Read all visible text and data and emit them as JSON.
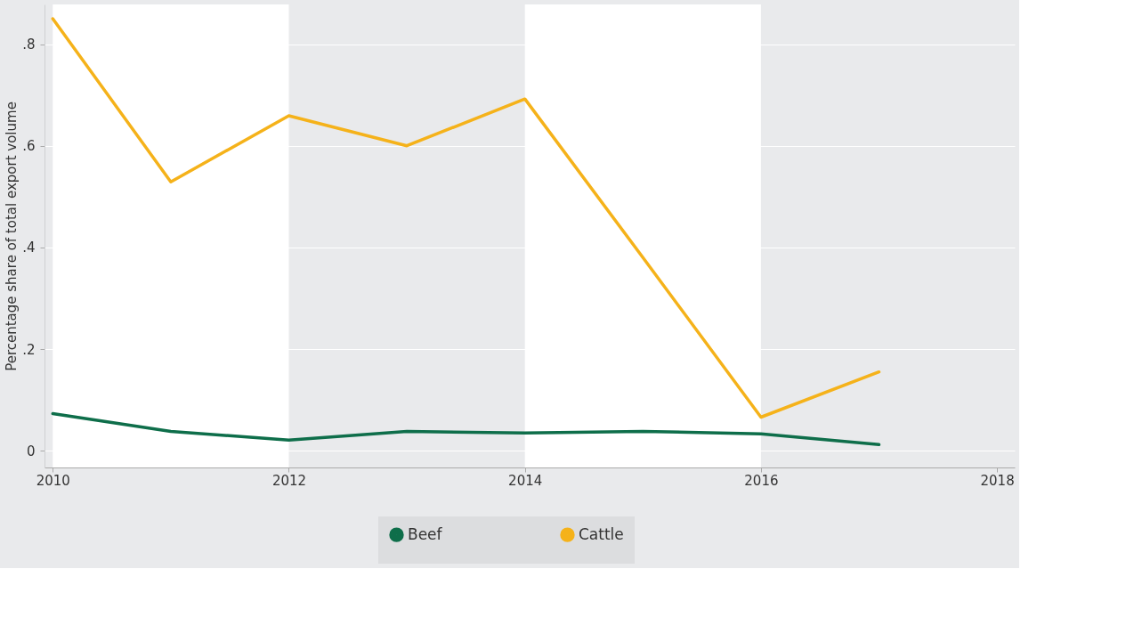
{
  "chart_data": {
    "type": "line",
    "ylabel": "Percentage share of total export volume",
    "x": [
      2010,
      2011,
      2012,
      2013,
      2014,
      2015,
      2016,
      2017
    ],
    "series": [
      {
        "name": "Beef",
        "color": "#0e6e4a",
        "values": [
          0.073,
          0.038,
          0.021,
          0.038,
          0.035,
          0.038,
          0.033,
          0.012
        ]
      },
      {
        "name": "Cattle",
        "color": "#f5b21a",
        "values": [
          0.85,
          0.529,
          0.659,
          0.6,
          0.692,
          0.38,
          0.066,
          0.155
        ]
      }
    ],
    "xlim": [
      2009.93,
      2018.15
    ],
    "xticks": [
      2010,
      2012,
      2014,
      2016,
      2018
    ],
    "ylim": [
      -0.033,
      0.878
    ],
    "yticks": [
      {
        "value": 0,
        "label": "0"
      },
      {
        "value": 0.2,
        "label": ".2"
      },
      {
        "value": 0.4,
        "label": ".4"
      },
      {
        "value": 0.6,
        "label": ".6"
      },
      {
        "value": 0.8,
        "label": ".8"
      }
    ],
    "bands": [
      {
        "axis": "x",
        "from": 2010,
        "to": 2012,
        "color": "#ffffff"
      },
      {
        "axis": "x",
        "from": 2014,
        "to": 2016,
        "color": "#ffffff"
      }
    ],
    "grid": "y",
    "legend": "bottom"
  }
}
